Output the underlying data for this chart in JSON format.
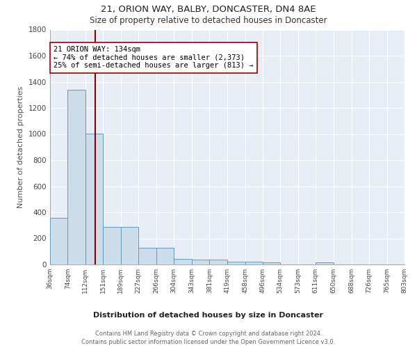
{
  "title1": "21, ORION WAY, BALBY, DONCASTER, DN4 8AE",
  "title2": "Size of property relative to detached houses in Doncaster",
  "xlabel": "Distribution of detached houses by size in Doncaster",
  "ylabel": "Number of detached properties",
  "bar_values": [
    355,
    1340,
    1005,
    290,
    290,
    130,
    130,
    42,
    38,
    38,
    22,
    22,
    18,
    0,
    0,
    18,
    0,
    0,
    0,
    0
  ],
  "bar_edges": [
    36,
    74,
    112,
    151,
    189,
    227,
    266,
    304,
    343,
    381,
    419,
    458,
    496,
    534,
    573,
    611,
    650,
    688,
    726,
    765,
    803
  ],
  "tick_labels": [
    "36sqm",
    "74sqm",
    "112sqm",
    "151sqm",
    "189sqm",
    "227sqm",
    "266sqm",
    "304sqm",
    "343sqm",
    "381sqm",
    "419sqm",
    "458sqm",
    "496sqm",
    "534sqm",
    "573sqm",
    "611sqm",
    "650sqm",
    "688sqm",
    "726sqm",
    "765sqm",
    "803sqm"
  ],
  "bar_color": "#ccdce8",
  "bar_edge_color": "#6699bb",
  "property_line_x": 134,
  "property_line_color": "#880000",
  "annotation_text": "21 ORION WAY: 134sqm\n← 74% of detached houses are smaller (2,373)\n25% of semi-detached houses are larger (813) →",
  "annotation_box_color": "#ffffff",
  "annotation_box_edge": "#990000",
  "ylim": [
    0,
    1800
  ],
  "yticks": [
    0,
    200,
    400,
    600,
    800,
    1000,
    1200,
    1400,
    1600,
    1800
  ],
  "bg_color": "#e8eef5",
  "footer_line1": "Contains HM Land Registry data © Crown copyright and database right 2024.",
  "footer_line2": "Contains public sector information licensed under the Open Government Licence v3.0."
}
